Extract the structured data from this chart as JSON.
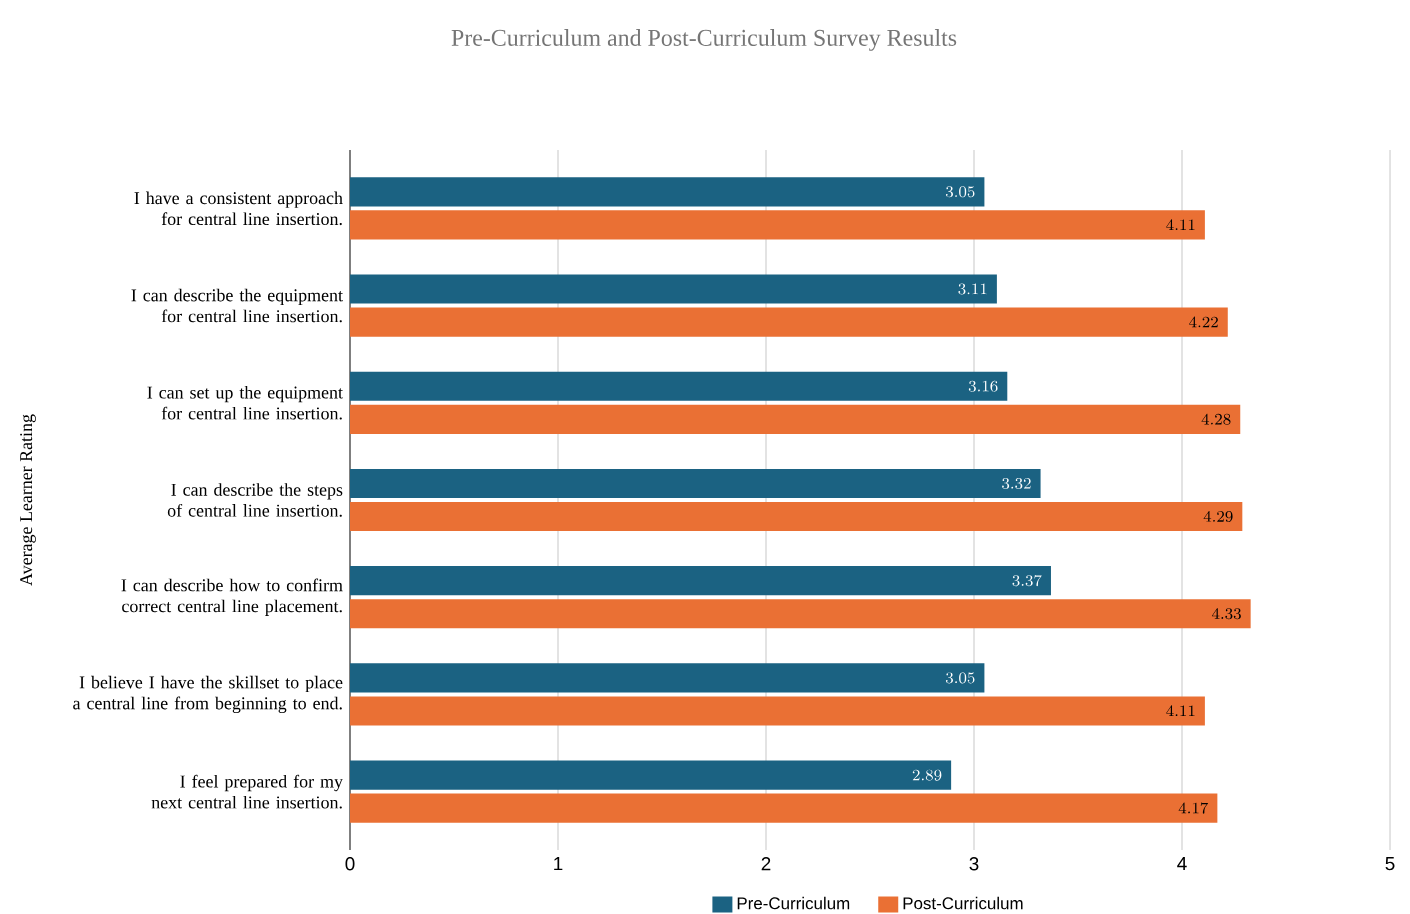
{
  "chart_data": {
    "type": "bar",
    "orientation": "horizontal",
    "title": "Pre-Curriculum and Post-Curriculum Survey Results",
    "ylabel": "Average Learner Rating",
    "categories": [
      "I have a consistent approach for central line insertion.",
      "I can describe the equipment for central line insertion.",
      "I can set up the equipment for central line insertion.",
      "I can describe the steps of central line insertion.",
      "I can describe how to confirm correct central line placement.",
      "I believe I have the skillset to place a central line from beginning to end.",
      "I feel prepared for my next central line insertion."
    ],
    "series": [
      {
        "name": "Pre-Curriculum",
        "color": "#1b6282",
        "values": [
          3.05,
          3.11,
          3.16,
          3.32,
          3.37,
          3.05,
          2.89
        ]
      },
      {
        "name": "Post-Curriculum",
        "color": "#ea7034",
        "values": [
          4.11,
          4.22,
          4.28,
          4.29,
          4.33,
          4.11,
          4.17
        ]
      }
    ],
    "xlim": [
      0,
      5
    ],
    "xticks": [
      0,
      1,
      2,
      3,
      4,
      5
    ],
    "grid": "x",
    "legend": "bottom",
    "data_labels": true
  }
}
